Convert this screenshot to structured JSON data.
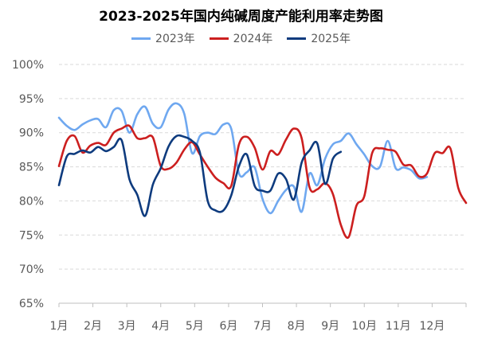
{
  "chart_data": {
    "type": "line",
    "title": "2023-2025年国内纯碱周度产能利用率走势图",
    "xlabel": "",
    "ylabel": "",
    "ylim": [
      65,
      100
    ],
    "yticks": [
      "65%",
      "70%",
      "75%",
      "80%",
      "85%",
      "90%",
      "95%",
      "100%"
    ],
    "ytick_values": [
      65,
      70,
      75,
      80,
      85,
      90,
      95,
      100
    ],
    "months": [
      "1月",
      "2月",
      "3月",
      "4月",
      "5月",
      "6月",
      "7月",
      "8月",
      "9月",
      "10月",
      "11月",
      "12月"
    ],
    "grid": true,
    "legend_position": "top-center",
    "series": [
      {
        "name": "2023年",
        "color": "#6fa8f0",
        "values": [
          92.2,
          91.0,
          90.4,
          91.2,
          91.8,
          92.0,
          90.8,
          93.3,
          93.2,
          90.0,
          92.7,
          93.8,
          91.3,
          90.8,
          93.4,
          94.3,
          92.8,
          87.0,
          89.5,
          90.0,
          89.8,
          91.2,
          90.6,
          84.0,
          84.2,
          84.9,
          80.3,
          78.2,
          80.0,
          81.6,
          82.1,
          78.4,
          84.0,
          82.3,
          86.2,
          88.3,
          88.8,
          89.9,
          88.3,
          86.8,
          85.1,
          85.0,
          88.8,
          84.8,
          84.9,
          84.5,
          83.3,
          83.5
        ]
      },
      {
        "name": "2024年",
        "color": "#cc1f1f",
        "values": [
          85.1,
          88.8,
          89.5,
          87.1,
          88.1,
          88.5,
          88.2,
          90.0,
          90.6,
          91.0,
          89.2,
          89.2,
          89.3,
          85.1,
          84.7,
          85.6,
          87.5,
          88.6,
          86.8,
          85.0,
          83.4,
          82.6,
          82.2,
          88.3,
          89.4,
          87.8,
          84.6,
          87.3,
          86.8,
          89.0,
          90.6,
          89.2,
          82.0,
          81.7,
          82.6,
          81.0,
          76.5,
          74.7,
          79.3,
          80.7,
          87.0,
          87.7,
          87.5,
          87.2,
          85.3,
          85.2,
          83.6,
          84.0,
          87.0,
          87.0,
          87.7,
          81.9,
          79.7
        ]
      },
      {
        "name": "2025年",
        "color": "#0e3b7e",
        "values": [
          82.3,
          86.5,
          86.9,
          87.4,
          87.1,
          87.9,
          87.3,
          87.9,
          88.9,
          83.2,
          80.9,
          77.8,
          82.4,
          84.8,
          88.0,
          89.5,
          89.4,
          88.8,
          87.1,
          80.0,
          78.6,
          78.6,
          80.8,
          85.1,
          86.8,
          82.2,
          81.5,
          81.5,
          84.0,
          83.2,
          80.2,
          85.6,
          87.4,
          88.4,
          82.5,
          86.2,
          87.2
        ]
      }
    ]
  }
}
